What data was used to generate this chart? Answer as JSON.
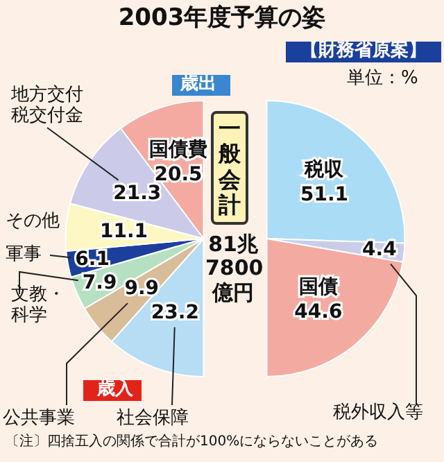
{
  "chart_data": [
    {
      "type": "pie",
      "title": "2003年度予算の姿",
      "annotations": [
        "歳出",
        "単位：%",
        "一般会計",
        "81兆7800億円"
      ],
      "categories": [
        "国債費",
        "地方交付税交付金",
        "その他",
        "軍事",
        "文教・科学",
        "公共事業",
        "社会保障"
      ],
      "values": [
        20.5,
        21.3,
        11.1,
        6.1,
        7.9,
        9.9,
        23.2
      ],
      "colors": [
        "#f4aaa0",
        "#cbcae8",
        "#fdf7c4",
        "#1c3f9c",
        "#b6e0c2",
        "#d9bd98",
        "#b7ddf5"
      ],
      "data_labels": true,
      "legend": false
    },
    {
      "type": "pie",
      "subtitle": "【財務省原案】",
      "annotations": [
        "歳入",
        "〔注〕四捨五入の関係で合計が100%にならないことがある"
      ],
      "categories": [
        "税収",
        "税外収入等",
        "国債"
      ],
      "values": [
        51.1,
        4.4,
        44.6
      ],
      "colors": [
        "#aadcf6",
        "#caccea",
        "#f3aba1"
      ],
      "data_labels": true,
      "legend": false
    }
  ]
}
